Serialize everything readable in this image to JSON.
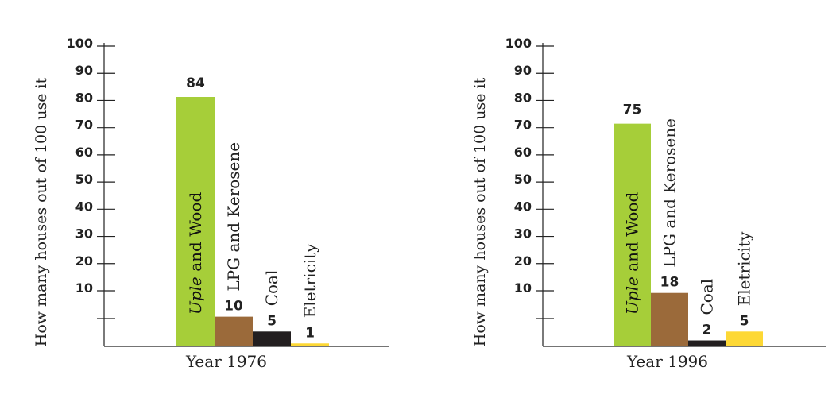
{
  "chart_data": [
    {
      "type": "bar",
      "title": "",
      "xlabel": "Year 1976",
      "ylabel": "How many houses out of 100 use it",
      "ylim": [
        0,
        100
      ],
      "yticks": [
        10,
        20,
        30,
        40,
        50,
        60,
        70,
        80,
        90,
        100
      ],
      "grid": false,
      "categories": [
        {
          "emph": "Uple",
          "rest": " and Wood"
        },
        {
          "emph": "",
          "rest": "LPG and Kerosene"
        },
        {
          "emph": "",
          "rest": "Coal"
        },
        {
          "emph": "",
          "rest": "Eletricity"
        }
      ],
      "values": [
        84,
        10,
        5,
        1
      ],
      "value_labels": [
        "84",
        "10",
        "5",
        "1"
      ],
      "colors": [
        "#a6ce39",
        "#9b6a3a",
        "#231f20",
        "#fdd835"
      ]
    },
    {
      "type": "bar",
      "title": "",
      "xlabel": "Year 1996",
      "ylabel": "How many houses out of 100 use it",
      "ylim": [
        0,
        100
      ],
      "yticks": [
        10,
        20,
        30,
        40,
        50,
        60,
        70,
        80,
        90,
        100
      ],
      "grid": false,
      "categories": [
        {
          "emph": "Uple",
          "rest": " and Wood"
        },
        {
          "emph": "",
          "rest": "LPG and Kerosene"
        },
        {
          "emph": "",
          "rest": "Coal"
        },
        {
          "emph": "",
          "rest": "Eletricity"
        }
      ],
      "values": [
        75,
        18,
        2,
        5
      ],
      "value_labels": [
        "75",
        "18",
        "2",
        "5"
      ],
      "colors": [
        "#a6ce39",
        "#9b6a3a",
        "#231f20",
        "#fdd835"
      ]
    }
  ]
}
